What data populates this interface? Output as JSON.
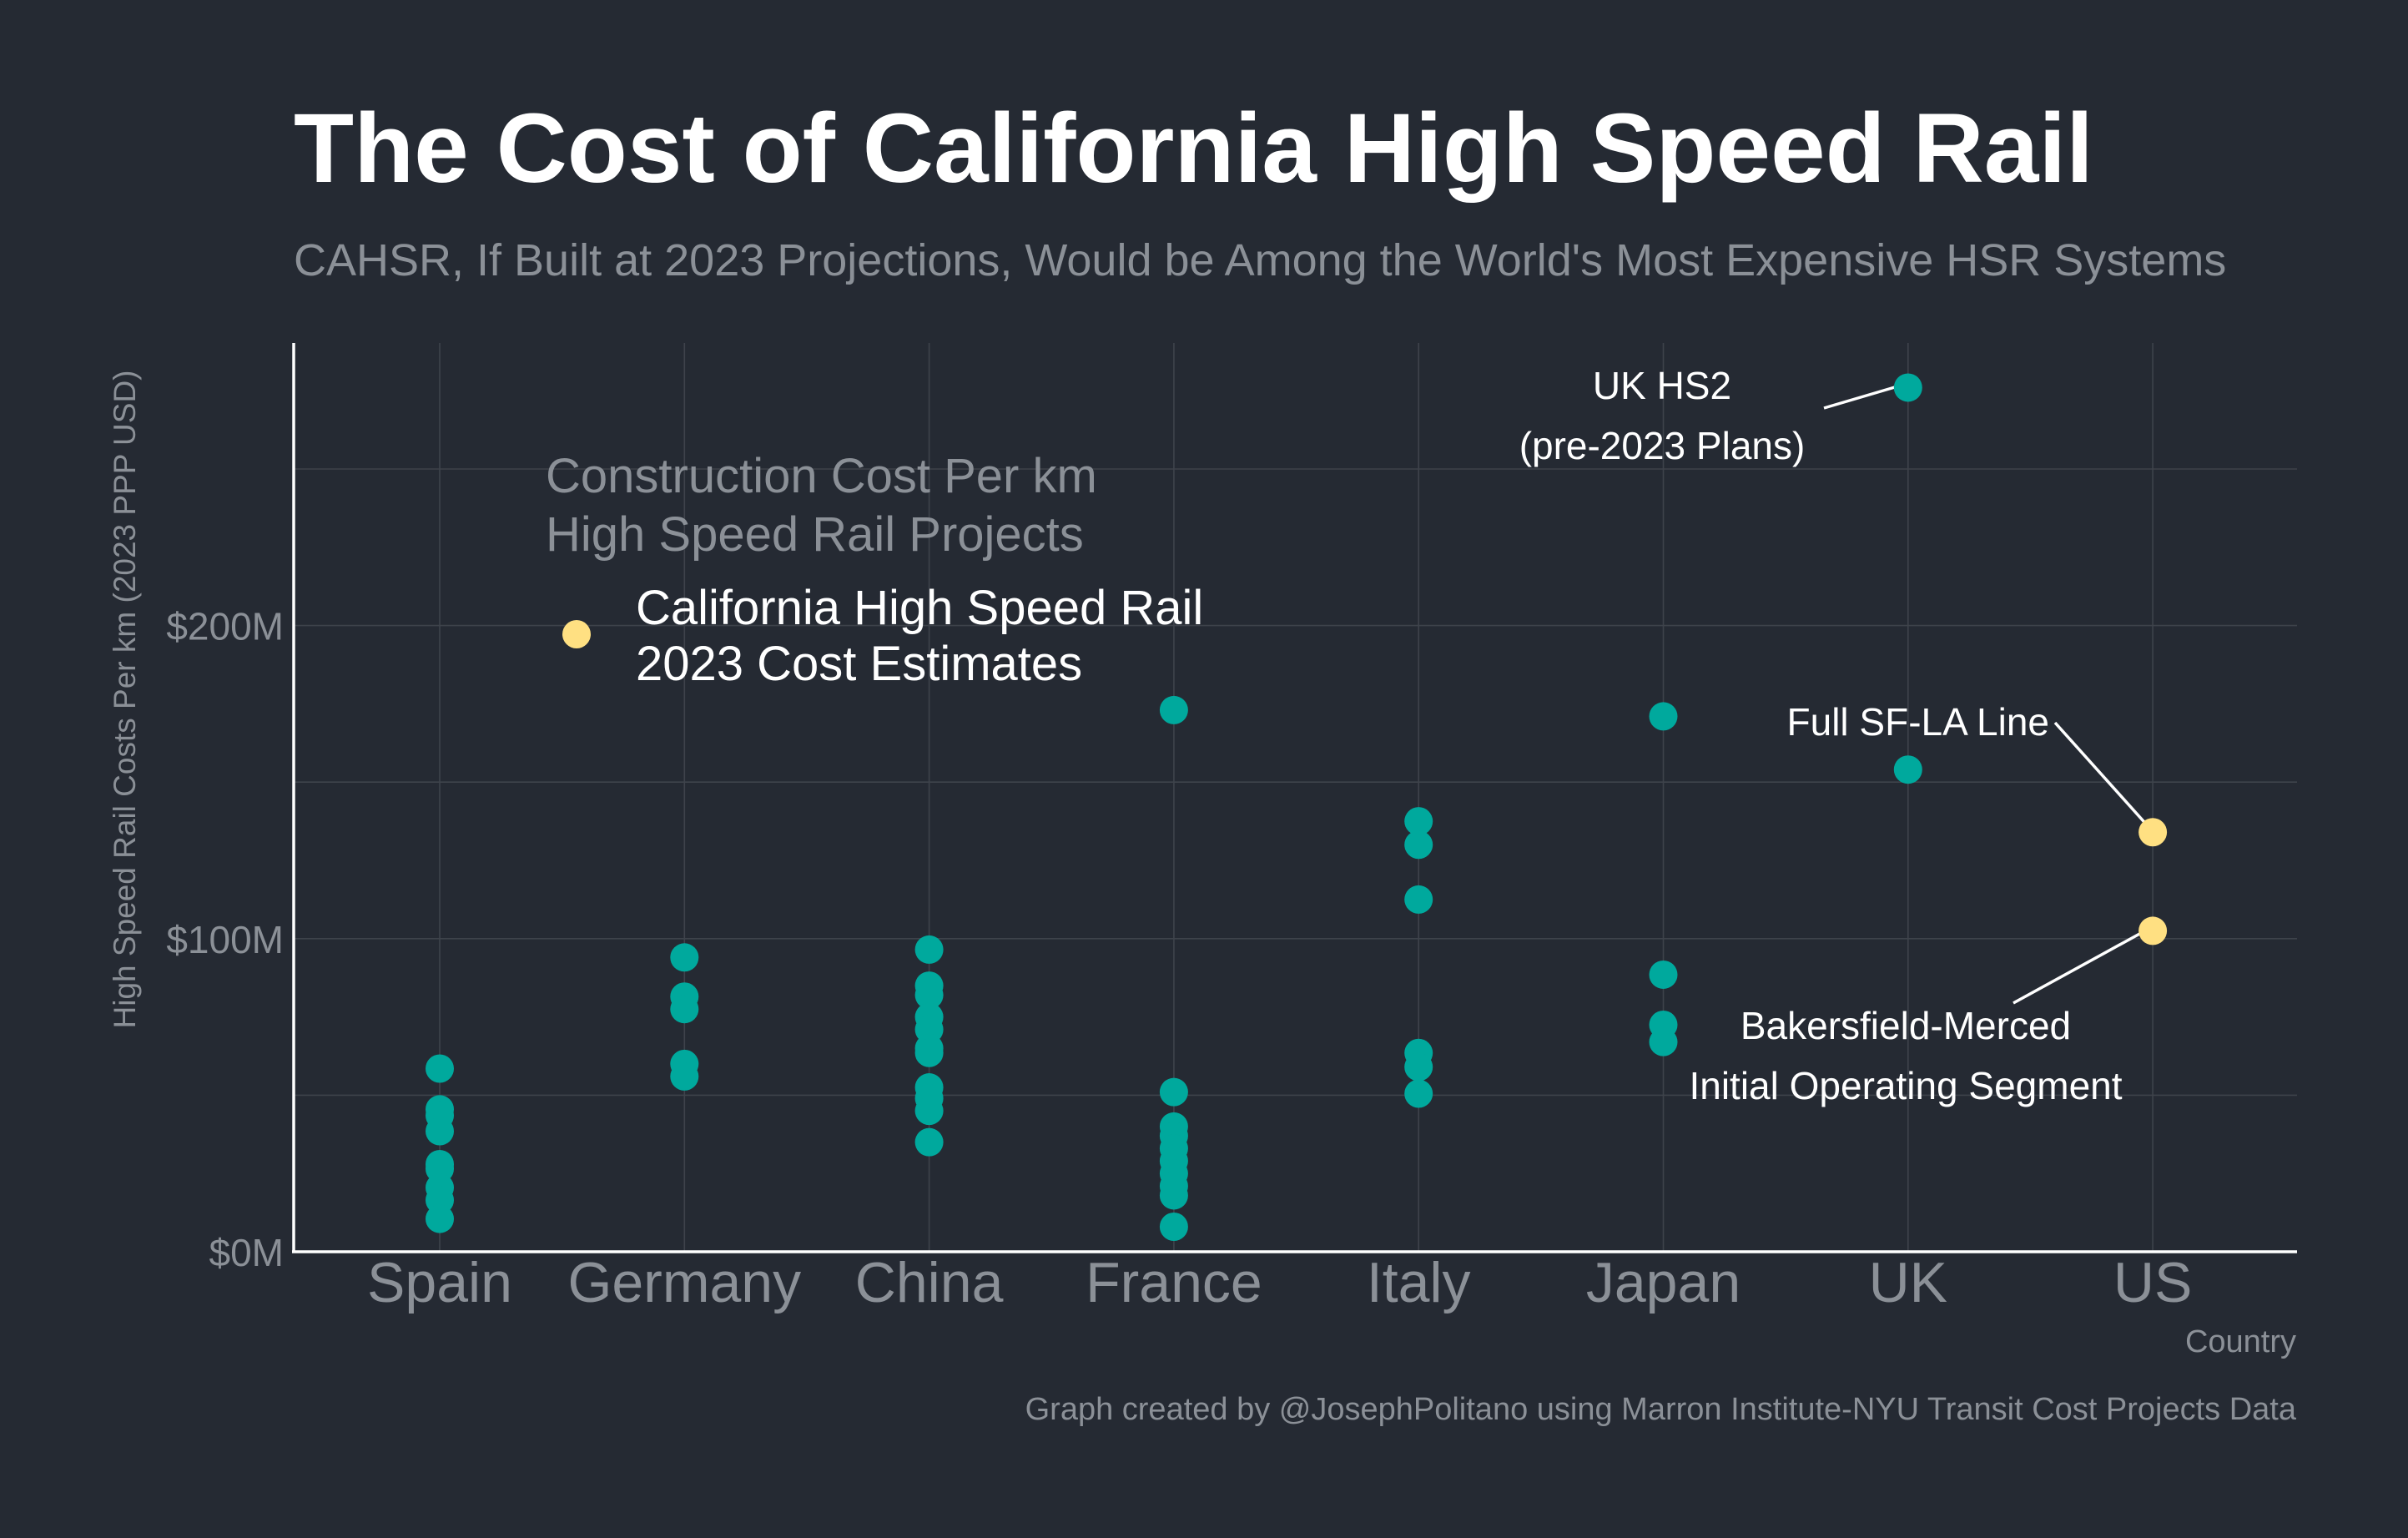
{
  "chart_data": {
    "type": "scatter",
    "title": "The Cost of California High Speed Rail",
    "subtitle": "CAHSR, If Built at 2023 Projections, Would be Among the World's Most Expensive HSR Systems",
    "xlabel": "Country",
    "ylabel": "High Speed Rail Costs Per km (2023 PPP USD)",
    "categories": [
      "Spain",
      "Germany",
      "China",
      "France",
      "Italy",
      "Japan",
      "UK",
      "US"
    ],
    "ylim": [
      0,
      290
    ],
    "y_unit": "million USD",
    "y_ticks": [
      {
        "value": 0,
        "label": "$0M"
      },
      {
        "value": 100,
        "label": "$100M"
      },
      {
        "value": 200,
        "label": "$200M"
      }
    ],
    "grid": true,
    "colors": {
      "other": "#00a99d",
      "california": "#ffe082",
      "background": "#252a33"
    },
    "legend": {
      "title_line1": "Construction Cost Per km",
      "title_line2": "High Speed Rail Projects",
      "entry_line1": "California High Speed Rail",
      "entry_line2": "2023 Cost Estimates",
      "placement": "top-left"
    },
    "series": [
      {
        "color_key": "other",
        "points": [
          {
            "x": "Spain",
            "y": 58.5
          },
          {
            "x": "Spain",
            "y": 45.5
          },
          {
            "x": "Spain",
            "y": 43.5
          },
          {
            "x": "Spain",
            "y": 38.5
          },
          {
            "x": "Spain",
            "y": 28
          },
          {
            "x": "Spain",
            "y": 26.5
          },
          {
            "x": "Spain",
            "y": 20.5
          },
          {
            "x": "Spain",
            "y": 16.5
          },
          {
            "x": "Spain",
            "y": 10.5
          },
          {
            "x": "Germany",
            "y": 94
          },
          {
            "x": "Germany",
            "y": 81.5
          },
          {
            "x": "Germany",
            "y": 77.5
          },
          {
            "x": "Germany",
            "y": 60
          },
          {
            "x": "Germany",
            "y": 56
          },
          {
            "x": "China",
            "y": 96.5
          },
          {
            "x": "China",
            "y": 85
          },
          {
            "x": "China",
            "y": 82
          },
          {
            "x": "China",
            "y": 75
          },
          {
            "x": "China",
            "y": 71
          },
          {
            "x": "China",
            "y": 65
          },
          {
            "x": "China",
            "y": 63.5
          },
          {
            "x": "China",
            "y": 52.5
          },
          {
            "x": "China",
            "y": 49
          },
          {
            "x": "China",
            "y": 45
          },
          {
            "x": "China",
            "y": 35
          },
          {
            "x": "France",
            "y": 173
          },
          {
            "x": "France",
            "y": 51
          },
          {
            "x": "France",
            "y": 40
          },
          {
            "x": "France",
            "y": 37
          },
          {
            "x": "France",
            "y": 33
          },
          {
            "x": "France",
            "y": 29
          },
          {
            "x": "France",
            "y": 25
          },
          {
            "x": "France",
            "y": 21
          },
          {
            "x": "France",
            "y": 18
          },
          {
            "x": "France",
            "y": 8
          },
          {
            "x": "Italy",
            "y": 137.5
          },
          {
            "x": "Italy",
            "y": 130
          },
          {
            "x": "Italy",
            "y": 112.5
          },
          {
            "x": "Italy",
            "y": 63.5
          },
          {
            "x": "Italy",
            "y": 59
          },
          {
            "x": "Italy",
            "y": 50.5
          },
          {
            "x": "Japan",
            "y": 171
          },
          {
            "x": "Japan",
            "y": 88.5
          },
          {
            "x": "Japan",
            "y": 72.5
          },
          {
            "x": "Japan",
            "y": 67
          },
          {
            "x": "UK",
            "y": 276
          },
          {
            "x": "UK",
            "y": 154
          }
        ]
      },
      {
        "color_key": "california",
        "points": [
          {
            "x": "US",
            "y": 134
          },
          {
            "x": "US",
            "y": 102.5
          }
        ]
      }
    ],
    "annotations": [
      {
        "line1": "UK HS2",
        "line2": "(pre-2023 Plans)",
        "category": "UK",
        "y": 276
      },
      {
        "line1": "Full SF-LA Line",
        "category": "US",
        "y": 134
      },
      {
        "line1": "Bakersfield-Merced",
        "line2": "Initial Operating Segment",
        "category": "US",
        "y": 102.5
      }
    ],
    "caption": "Graph created by @JosephPolitano using Marron Institute-NYU Transit Cost Projects Data"
  }
}
